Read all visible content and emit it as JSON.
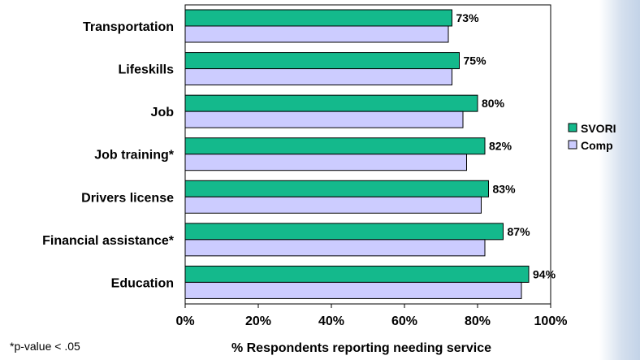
{
  "chart_data": {
    "type": "bar",
    "orientation": "horizontal",
    "categories": [
      "Transportation",
      "Lifeskills",
      "Job",
      "Job training*",
      "Drivers license",
      "Financial assistance*",
      "Education"
    ],
    "series": [
      {
        "name": "SVORI",
        "values": [
          73,
          75,
          80,
          82,
          83,
          87,
          94
        ],
        "color": "#14b98c",
        "data_labels": [
          "73%",
          "75%",
          "80%",
          "82%",
          "83%",
          "87%",
          "94%"
        ]
      },
      {
        "name": "Comp",
        "values": [
          72,
          73,
          76,
          77,
          81,
          82,
          92
        ],
        "color": "#ccccff"
      }
    ],
    "xlabel": "% Respondents reporting needing service",
    "xlim": [
      0,
      100
    ],
    "xticks": [
      "0%",
      "20%",
      "40%",
      "60%",
      "80%",
      "100%"
    ],
    "legend_position": "right",
    "grid": false
  },
  "footnote": "*p-value < .05"
}
